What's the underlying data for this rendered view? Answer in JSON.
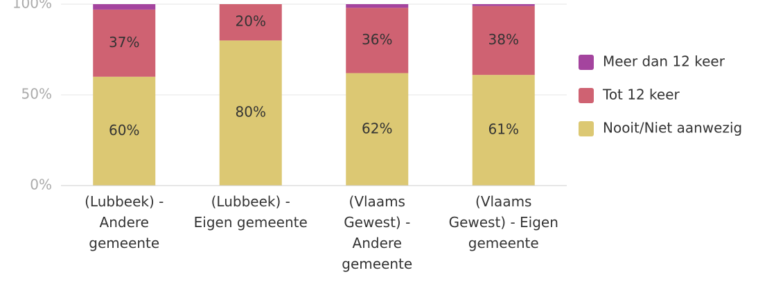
{
  "chart_data": {
    "type": "stacked_bar",
    "categories": [
      "(Lubbeek) - Andere gemeente",
      "(Lubbeek) - Eigen gemeente",
      "(Vlaams Gewest) - Andere gemeente",
      "(Vlaams Gewest) - Eigen gemeente"
    ],
    "series": [
      {
        "name": "Nooit/Niet aanwezig",
        "color": "#dcc873",
        "values": [
          60,
          80,
          62,
          61
        ],
        "value_labels": [
          "60%",
          "80%",
          "62%",
          "61%"
        ]
      },
      {
        "name": "Tot 12 keer",
        "color": "#cf6272",
        "values": [
          37,
          20,
          36,
          38
        ],
        "value_labels": [
          "37%",
          "20%",
          "36%",
          "38%"
        ]
      },
      {
        "name": "Meer dan 12 keer",
        "color": "#a4449e",
        "values": [
          3,
          0,
          2,
          1
        ]
      }
    ],
    "ylim": [
      0,
      100
    ],
    "yticks": [
      {
        "value": 0,
        "label": "0%"
      },
      {
        "value": 50,
        "label": "50%"
      },
      {
        "value": 100,
        "label": "100%"
      }
    ],
    "grid": true,
    "legend": "right"
  }
}
